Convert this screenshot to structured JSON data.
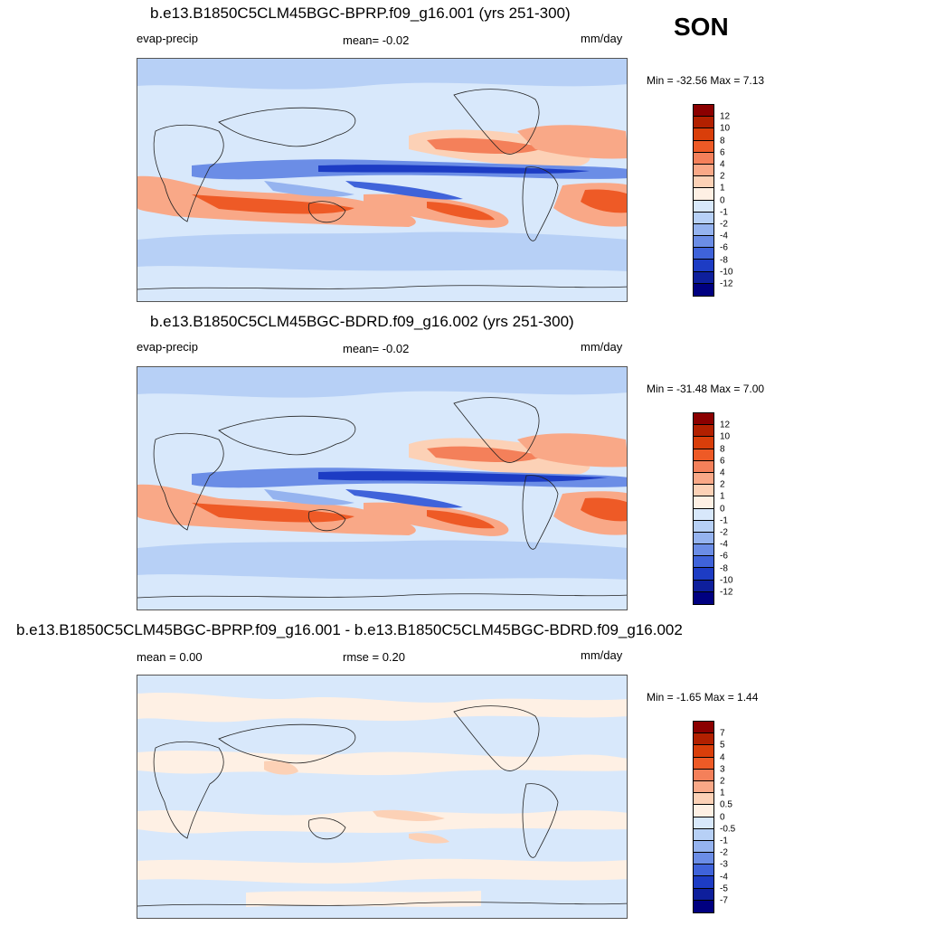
{
  "season": "SON",
  "panels": [
    {
      "title": "b.e13.B1850C5CLM45BGC-BPRP.f09_g16.001 (yrs 251-300)",
      "left_label": "evap-precip",
      "center_label": "mean=  -0.02",
      "units": "mm/day",
      "minmax": "Min = -32.56 Max =   7.13",
      "colorbar": {
        "colors": [
          "#8b0000",
          "#b22000",
          "#d93e0a",
          "#ee5a26",
          "#f4805a",
          "#f9a887",
          "#fcd1b6",
          "#fef0e4",
          "#d8e8fb",
          "#b7d0f6",
          "#95b3ef",
          "#6b8de6",
          "#3f63da",
          "#1d3cc4",
          "#0e1f9c",
          "#000080"
        ],
        "ticks": [
          "12",
          "10",
          "8",
          "6",
          "4",
          "2",
          "1",
          "0",
          "-1",
          "-2",
          "-4",
          "-6",
          "-8",
          "-10",
          "-12"
        ]
      }
    },
    {
      "title": "b.e13.B1850C5CLM45BGC-BDRD.f09_g16.002 (yrs 251-300)",
      "left_label": "evap-precip",
      "center_label": "mean=  -0.02",
      "units": "mm/day",
      "minmax": "Min = -31.48 Max =   7.00",
      "colorbar": {
        "colors": [
          "#8b0000",
          "#b22000",
          "#d93e0a",
          "#ee5a26",
          "#f4805a",
          "#f9a887",
          "#fcd1b6",
          "#fef0e4",
          "#d8e8fb",
          "#b7d0f6",
          "#95b3ef",
          "#6b8de6",
          "#3f63da",
          "#1d3cc4",
          "#0e1f9c",
          "#000080"
        ],
        "ticks": [
          "12",
          "10",
          "8",
          "6",
          "4",
          "2",
          "1",
          "0",
          "-1",
          "-2",
          "-4",
          "-6",
          "-8",
          "-10",
          "-12"
        ]
      }
    },
    {
      "title": "b.e13.B1850C5CLM45BGC-BPRP.f09_g16.001 - b.e13.B1850C5CLM45BGC-BDRD.f09_g16.002",
      "left_label": "mean =   0.00",
      "center_label": "rmse =   0.20",
      "units": "mm/day",
      "minmax": "Min =  -1.65 Max =   1.44",
      "colorbar": {
        "colors": [
          "#8b0000",
          "#b22000",
          "#d93e0a",
          "#ee5a26",
          "#f4805a",
          "#f9a887",
          "#fcd1b6",
          "#fef0e4",
          "#d8e8fb",
          "#b7d0f6",
          "#95b3ef",
          "#6b8de6",
          "#3f63da",
          "#1d3cc4",
          "#0e1f9c",
          "#000080"
        ],
        "ticks": [
          "7",
          "5",
          "4",
          "3",
          "2",
          "1",
          "0.5",
          "0",
          "-0.5",
          "-1",
          "-2",
          "-3",
          "-4",
          "-5",
          "-7"
        ]
      }
    }
  ]
}
